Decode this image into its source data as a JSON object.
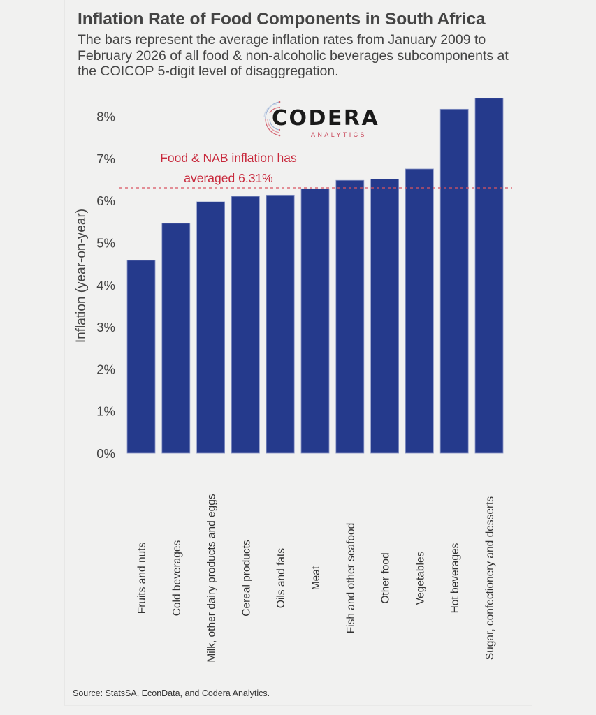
{
  "chart_data": {
    "type": "bar",
    "title": "Inflation Rate of Food Components in South Africa",
    "subtitle_lines": [
      "The bars represent the average inflation rates from January 2009 to",
      "February 2026 of all food & non-alcoholic beverages subcomponents at",
      "the COICOP 5-digit level of disaggregation."
    ],
    "xlabel": "",
    "ylabel": "Inflation (year-on-year)",
    "ylim": [
      0,
      8.5
    ],
    "yticks": [
      0,
      1,
      2,
      3,
      4,
      5,
      6,
      7,
      8
    ],
    "ytick_labels": [
      "0%",
      "1%",
      "2%",
      "3%",
      "4%",
      "5%",
      "6%",
      "7%",
      "8%"
    ],
    "categories": [
      "Fruits and nuts",
      "Cold beverages",
      "Milk, other dairy products and eggs",
      "Cereal products",
      "Oils and fats",
      "Meat",
      "Fish and other seafood",
      "Other food",
      "Vegetables",
      "Hot beverages",
      "Sugar, confectionery and desserts"
    ],
    "values": [
      4.58,
      5.46,
      5.97,
      6.1,
      6.13,
      6.28,
      6.48,
      6.51,
      6.75,
      8.17,
      8.43
    ],
    "reference_line": {
      "value": 6.31,
      "style": "dashed",
      "label_lines": [
        "Food & NAB inflation has",
        "averaged 6.31%"
      ]
    },
    "grid": false,
    "legend": "none",
    "colors": {
      "bar": "#253a8c",
      "bar_edge": "#8b97c6",
      "reference_line": "#d9535f",
      "annotation": "#c8283b",
      "text": "#444444"
    }
  },
  "logo": {
    "name": "CODERA",
    "sub": "ANALYTICS"
  },
  "source": "Source: StatsSA, EconData, and Codera Analytics."
}
